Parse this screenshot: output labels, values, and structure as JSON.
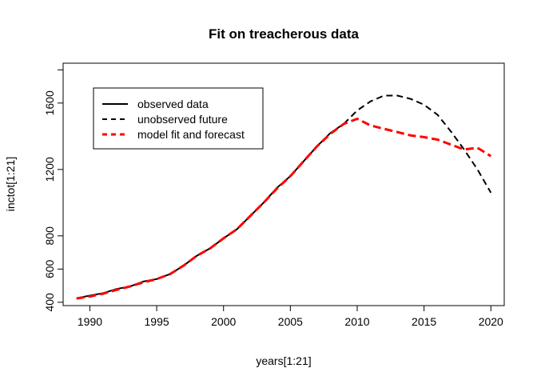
{
  "chart_data": {
    "type": "line",
    "title": "Fit on treacherous data",
    "xlabel": "years[1:21]",
    "ylabel": "inctot[1:21]",
    "xlim": [
      1988,
      2021
    ],
    "ylim": [
      380,
      1840
    ],
    "x_ticks": [
      1990,
      1995,
      2000,
      2005,
      2010,
      2015,
      2020
    ],
    "y_ticks": [
      400,
      600,
      800,
      1200,
      1600
    ],
    "grid": false,
    "legend_position": "top-left",
    "series": [
      {
        "name": "observed data",
        "color": "#000000",
        "style": "solid",
        "x": [
          1989,
          1990,
          1991,
          1992,
          1993,
          1994,
          1995,
          1996,
          1997,
          1998,
          1999,
          2000,
          2001,
          2002,
          2003,
          2004,
          2005,
          2006,
          2007,
          2008,
          2009
        ],
        "y": [
          425,
          440,
          455,
          480,
          495,
          525,
          540,
          570,
          620,
          680,
          725,
          785,
          840,
          920,
          1000,
          1090,
          1160,
          1250,
          1340,
          1420,
          1475
        ]
      },
      {
        "name": "unobserved future",
        "color": "#000000",
        "style": "dashed",
        "x": [
          2009,
          2010,
          2011,
          2012,
          2013,
          2014,
          2015,
          2016,
          2017,
          2018,
          2019,
          2020
        ],
        "y": [
          1475,
          1555,
          1610,
          1645,
          1645,
          1625,
          1590,
          1530,
          1430,
          1320,
          1200,
          1060
        ]
      },
      {
        "name": "model fit and forecast",
        "color": "#ff0000",
        "style": "dashed",
        "x": [
          1989,
          1990,
          1991,
          1992,
          1993,
          1994,
          1995,
          1996,
          1997,
          1998,
          1999,
          2000,
          2001,
          2002,
          2003,
          2004,
          2005,
          2006,
          2007,
          2008,
          2009,
          2010,
          2011,
          2012,
          2013,
          2014,
          2015,
          2016,
          2017,
          2018,
          2019,
          2020
        ],
        "y": [
          423,
          435,
          452,
          475,
          495,
          520,
          540,
          570,
          620,
          680,
          725,
          785,
          840,
          920,
          1000,
          1085,
          1160,
          1250,
          1340,
          1415,
          1475,
          1505,
          1465,
          1445,
          1425,
          1405,
          1395,
          1380,
          1350,
          1320,
          1330,
          1280
        ]
      }
    ]
  }
}
